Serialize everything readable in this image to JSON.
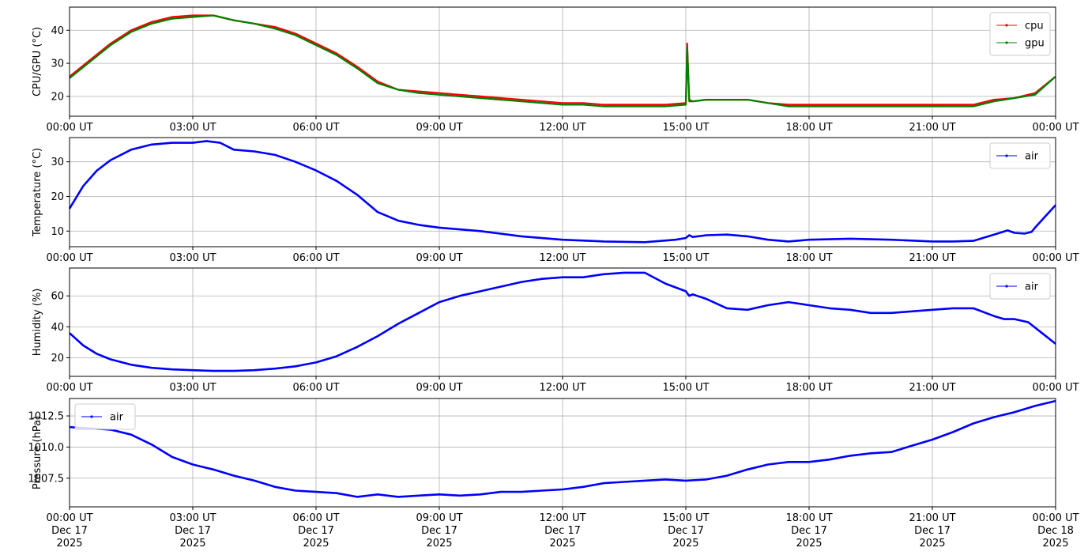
{
  "colors": {
    "cpu": "#ff0000",
    "gpu": "#008000",
    "air": "#0000ff",
    "grid": "#b0b0b0",
    "axes": "#000000"
  },
  "chart_data": [
    {
      "type": "line",
      "ylabel": "CPU/GPU (°C)",
      "ylim": [
        14,
        47
      ],
      "yticks": [
        20,
        30,
        40
      ],
      "ytick_labels": [
        "20",
        "30",
        "40"
      ],
      "xlim": [
        "2025-12-17 00:00",
        "2025-12-18 00:00"
      ],
      "xtick_labels": [
        "00:00 UT",
        "03:00 UT",
        "06:00 UT",
        "09:00 UT",
        "12:00 UT",
        "15:00 UT",
        "18:00 UT",
        "21:00 UT",
        "00:00 UT"
      ],
      "grid": true,
      "legend": "top-right",
      "series": [
        {
          "name": "cpu",
          "color": "#ff0000",
          "x": [
            "00:00",
            "00:30",
            "01:00",
            "01:30",
            "02:00",
            "02:30",
            "03:00",
            "03:30",
            "04:00",
            "04:30",
            "05:00",
            "05:30",
            "06:00",
            "06:30",
            "07:00",
            "07:30",
            "08:00",
            "08:30",
            "09:00",
            "09:30",
            "10:00",
            "10:30",
            "11:00",
            "11:30",
            "12:00",
            "12:30",
            "13:00",
            "13:30",
            "14:00",
            "14:30",
            "15:00",
            "15:02",
            "15:05",
            "15:10",
            "15:30",
            "16:00",
            "16:30",
            "17:00",
            "17:30",
            "18:00",
            "18:30",
            "19:00",
            "19:30",
            "20:00",
            "20:30",
            "21:00",
            "21:30",
            "22:00",
            "22:30",
            "23:00",
            "23:30",
            "24:00"
          ],
          "values": [
            26,
            31,
            36,
            40,
            42.5,
            44,
            44.5,
            44.5,
            43,
            42,
            41,
            39,
            36,
            33,
            29,
            24.5,
            22,
            21.5,
            21,
            20.5,
            20,
            19.5,
            19,
            18.5,
            18,
            18,
            17.5,
            17.5,
            17.5,
            17.5,
            18,
            36,
            19,
            18.5,
            19,
            19,
            19,
            18,
            17.5,
            17.5,
            17.5,
            17.5,
            17.5,
            17.5,
            17.5,
            17.5,
            17.5,
            17.5,
            19,
            19.5,
            21,
            26
          ]
        },
        {
          "name": "gpu",
          "color": "#008000",
          "x": [
            "00:00",
            "00:30",
            "01:00",
            "01:30",
            "02:00",
            "02:30",
            "03:00",
            "03:30",
            "04:00",
            "04:30",
            "05:00",
            "05:30",
            "06:00",
            "06:30",
            "07:00",
            "07:30",
            "08:00",
            "08:30",
            "09:00",
            "09:30",
            "10:00",
            "10:30",
            "11:00",
            "11:30",
            "12:00",
            "12:30",
            "13:00",
            "13:30",
            "14:00",
            "14:30",
            "15:00",
            "15:02",
            "15:05",
            "15:10",
            "15:30",
            "16:00",
            "16:30",
            "17:00",
            "17:30",
            "18:00",
            "18:30",
            "19:00",
            "19:30",
            "20:00",
            "20:30",
            "21:00",
            "21:30",
            "22:00",
            "22:30",
            "23:00",
            "23:30",
            "24:00"
          ],
          "values": [
            25.5,
            30.5,
            35.5,
            39.5,
            42,
            43.5,
            44,
            44.5,
            43,
            42,
            40.5,
            38.5,
            35.5,
            32.5,
            28.5,
            24,
            22,
            21,
            20.5,
            20,
            19.5,
            19,
            18.5,
            18,
            17.5,
            17.5,
            17,
            17,
            17,
            17,
            17.5,
            35,
            18.5,
            18.5,
            19,
            19,
            19,
            18,
            17,
            17,
            17,
            17,
            17,
            17,
            17,
            17,
            17,
            17,
            18.5,
            19.5,
            20.5,
            26
          ]
        }
      ]
    },
    {
      "type": "line",
      "ylabel": "Temperature (°C)",
      "ylim": [
        5.5,
        37
      ],
      "yticks": [
        10,
        20,
        30
      ],
      "ytick_labels": [
        "10",
        "20",
        "30"
      ],
      "xlim": [
        "2025-12-17 00:00",
        "2025-12-18 00:00"
      ],
      "xtick_labels": [
        "00:00 UT",
        "03:00 UT",
        "06:00 UT",
        "09:00 UT",
        "12:00 UT",
        "15:00 UT",
        "18:00 UT",
        "21:00 UT",
        "00:00 UT"
      ],
      "grid": true,
      "legend": "top-right",
      "series": [
        {
          "name": "air",
          "color": "#0000ff",
          "x": [
            "00:00",
            "00:20",
            "00:40",
            "01:00",
            "01:30",
            "02:00",
            "02:30",
            "03:00",
            "03:20",
            "03:40",
            "04:00",
            "04:30",
            "05:00",
            "05:30",
            "06:00",
            "06:30",
            "07:00",
            "07:30",
            "08:00",
            "08:30",
            "09:00",
            "10:00",
            "11:00",
            "12:00",
            "13:00",
            "14:00",
            "14:45",
            "15:00",
            "15:05",
            "15:10",
            "15:30",
            "16:00",
            "16:30",
            "17:00",
            "17:30",
            "18:00",
            "19:00",
            "20:00",
            "21:00",
            "21:30",
            "22:00",
            "22:30",
            "22:50",
            "23:00",
            "23:15",
            "23:25",
            "23:30",
            "24:00"
          ],
          "values": [
            16.5,
            23,
            27.5,
            30.5,
            33.5,
            35,
            35.5,
            35.5,
            36,
            35.5,
            33.5,
            33,
            32,
            30,
            27.5,
            24.5,
            20.5,
            15.5,
            13,
            11.8,
            11,
            10,
            8.5,
            7.5,
            7,
            6.8,
            7.5,
            8,
            8.8,
            8.3,
            8.8,
            9,
            8.5,
            7.5,
            7,
            7.5,
            7.8,
            7.5,
            7,
            7,
            7.2,
            9,
            10.2,
            9.5,
            9.3,
            9.8,
            11,
            17.5
          ]
        }
      ]
    },
    {
      "type": "line",
      "ylabel": "Humidity (%)",
      "ylim": [
        8,
        78
      ],
      "yticks": [
        20,
        40,
        60
      ],
      "ytick_labels": [
        "20",
        "40",
        "60"
      ],
      "xlim": [
        "2025-12-17 00:00",
        "2025-12-18 00:00"
      ],
      "xtick_labels": [
        "00:00 UT",
        "03:00 UT",
        "06:00 UT",
        "09:00 UT",
        "12:00 UT",
        "15:00 UT",
        "18:00 UT",
        "21:00 UT",
        "00:00 UT"
      ],
      "grid": true,
      "legend": "top-right",
      "series": [
        {
          "name": "air",
          "color": "#0000ff",
          "x": [
            "00:00",
            "00:20",
            "00:40",
            "01:00",
            "01:30",
            "02:00",
            "02:30",
            "03:00",
            "03:30",
            "04:00",
            "04:30",
            "05:00",
            "05:30",
            "06:00",
            "06:30",
            "07:00",
            "07:30",
            "08:00",
            "08:30",
            "09:00",
            "09:30",
            "10:00",
            "10:30",
            "11:00",
            "11:30",
            "12:00",
            "12:30",
            "13:00",
            "13:30",
            "14:00",
            "14:30",
            "15:00",
            "15:05",
            "15:10",
            "15:30",
            "16:00",
            "16:30",
            "17:00",
            "17:30",
            "18:00",
            "18:30",
            "19:00",
            "19:30",
            "20:00",
            "20:30",
            "21:00",
            "21:30",
            "22:00",
            "22:30",
            "22:45",
            "23:00",
            "23:20",
            "23:40",
            "24:00"
          ],
          "values": [
            36,
            28,
            22.5,
            19,
            15.5,
            13.5,
            12.5,
            12,
            11.5,
            11.5,
            12,
            13,
            14.5,
            17,
            21,
            27,
            34,
            42,
            49,
            56,
            60,
            63,
            66,
            69,
            71,
            72,
            72,
            74,
            75,
            75,
            68,
            63,
            60,
            61,
            58,
            52,
            51,
            54,
            56,
            54,
            52,
            51,
            49,
            49,
            50,
            51,
            52,
            52,
            47,
            45,
            45,
            43,
            36,
            29
          ]
        }
      ]
    },
    {
      "type": "line",
      "ylabel": "Pressure (hPa)",
      "ylim": [
        1005.2,
        1013.9
      ],
      "yticks": [
        1007.5,
        1010.0,
        1012.5
      ],
      "ytick_labels": [
        "1007.5",
        "1010.0",
        "1012.5"
      ],
      "xlim": [
        "2025-12-17 00:00",
        "2025-12-18 00:00"
      ],
      "xtick_labels": [
        "00:00 UT\nDec 17\n2025",
        "03:00 UT\nDec 17\n2025",
        "06:00 UT\nDec 17\n2025",
        "09:00 UT\nDec 17\n2025",
        "12:00 UT\nDec 17\n2025",
        "15:00 UT\nDec 17\n2025",
        "18:00 UT\nDec 17\n2025",
        "21:00 UT\nDec 17\n2025",
        "00:00 UT\nDec 18\n2025"
      ],
      "grid": true,
      "legend": "top-left",
      "series": [
        {
          "name": "air",
          "color": "#0000ff",
          "x": [
            "00:00",
            "00:30",
            "01:00",
            "01:30",
            "02:00",
            "02:30",
            "03:00",
            "03:30",
            "04:00",
            "04:30",
            "05:00",
            "05:30",
            "06:00",
            "06:30",
            "07:00",
            "07:30",
            "08:00",
            "08:30",
            "09:00",
            "09:30",
            "10:00",
            "10:30",
            "11:00",
            "11:30",
            "12:00",
            "12:30",
            "13:00",
            "13:30",
            "14:00",
            "14:30",
            "15:00",
            "15:30",
            "16:00",
            "16:30",
            "17:00",
            "17:30",
            "18:00",
            "18:30",
            "19:00",
            "19:30",
            "20:00",
            "20:30",
            "21:00",
            "21:30",
            "22:00",
            "22:30",
            "23:00",
            "23:30",
            "24:00"
          ],
          "values": [
            1011.6,
            1011.5,
            1011.4,
            1011.0,
            1010.2,
            1009.2,
            1008.6,
            1008.2,
            1007.7,
            1007.3,
            1006.8,
            1006.5,
            1006.4,
            1006.3,
            1006.0,
            1006.2,
            1006.0,
            1006.1,
            1006.2,
            1006.1,
            1006.2,
            1006.4,
            1006.4,
            1006.5,
            1006.6,
            1006.8,
            1007.1,
            1007.2,
            1007.3,
            1007.4,
            1007.3,
            1007.4,
            1007.7,
            1008.2,
            1008.6,
            1008.8,
            1008.8,
            1009.0,
            1009.3,
            1009.5,
            1009.6,
            1010.1,
            1010.6,
            1011.2,
            1011.9,
            1012.4,
            1012.8,
            1013.3,
            1013.7
          ]
        }
      ]
    }
  ]
}
